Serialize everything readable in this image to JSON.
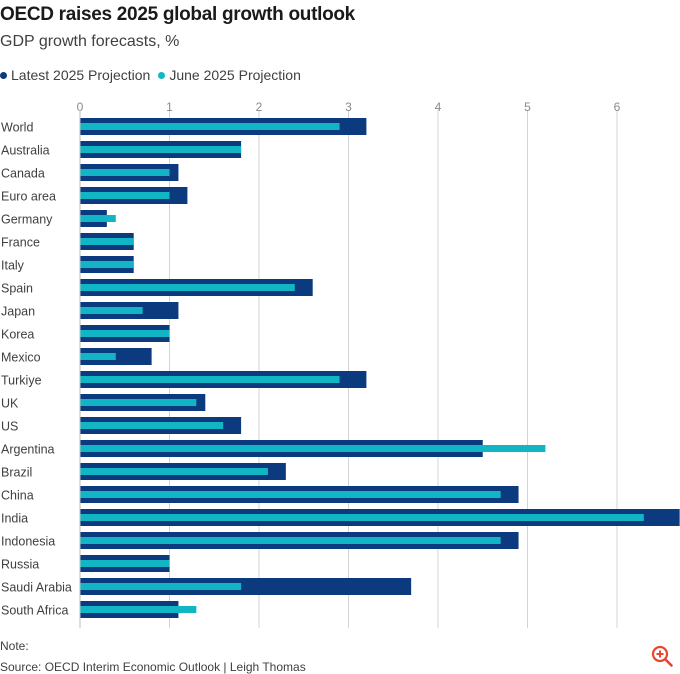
{
  "header": {
    "title": "OECD raises 2025 global growth outlook",
    "subtitle": "GDP growth forecasts, %"
  },
  "legend": [
    {
      "label": "Latest 2025 Projection",
      "color": "#0b3a7e"
    },
    {
      "label": "June 2025 Projection",
      "color": "#12b5c4"
    }
  ],
  "footer": {
    "note": "Note:",
    "source": "Source: OECD Interim Economic Outlook  | Leigh Thomas"
  },
  "icons": {
    "zoom": "zoom-in-icon",
    "zoom_color": "#e8452c"
  },
  "chart_data": {
    "type": "bar",
    "orientation": "horizontal",
    "title": "OECD raises 2025 global growth outlook",
    "subtitle": "GDP growth forecasts, %",
    "xlabel": "",
    "ylabel": "",
    "xlim": [
      0,
      6.7
    ],
    "xticks": [
      0,
      1,
      2,
      3,
      4,
      5,
      6
    ],
    "grid": true,
    "legend_position": "top-left",
    "categories": [
      "World",
      "Australia",
      "Canada",
      "Euro area",
      "Germany",
      "France",
      "Italy",
      "Spain",
      "Japan",
      "Korea",
      "Mexico",
      "Turkiye",
      "UK",
      "US",
      "Argentina",
      "Brazil",
      "China",
      "India",
      "Indonesia",
      "Russia",
      "Saudi Arabia",
      "South Africa"
    ],
    "series": [
      {
        "name": "Latest 2025 Projection",
        "color": "#0b3a7e",
        "values": [
          3.2,
          1.8,
          1.1,
          1.2,
          0.3,
          0.6,
          0.6,
          2.6,
          1.1,
          1.0,
          0.8,
          3.2,
          1.4,
          1.8,
          4.5,
          2.3,
          4.9,
          6.7,
          4.9,
          1.0,
          3.7,
          1.1
        ]
      },
      {
        "name": "June 2025 Projection",
        "color": "#12b5c4",
        "values": [
          2.9,
          1.8,
          1.0,
          1.0,
          0.4,
          0.6,
          0.6,
          2.4,
          0.7,
          1.0,
          0.4,
          2.9,
          1.3,
          1.6,
          5.2,
          2.1,
          4.7,
          6.3,
          4.7,
          1.0,
          1.8,
          1.3
        ]
      }
    ]
  }
}
